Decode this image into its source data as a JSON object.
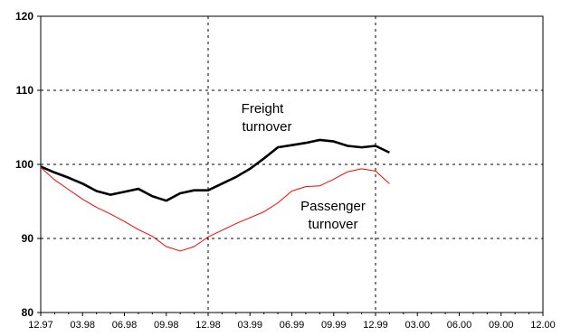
{
  "chart_data": {
    "type": "line",
    "title": "",
    "xlabel": "",
    "ylabel": "",
    "ylim": [
      80,
      120
    ],
    "yticks": [
      "80",
      "90",
      "100",
      "110",
      "120"
    ],
    "xticks": [
      "12.97",
      "03.98",
      "06.98",
      "09.98",
      "12.98",
      "03.99",
      "06.99",
      "09.99",
      "12.99",
      "03.00",
      "06.00",
      "09.00",
      "12.00"
    ],
    "x_months": [
      "12.97",
      "01.98",
      "02.98",
      "03.98",
      "04.98",
      "05.98",
      "06.98",
      "07.98",
      "08.98",
      "09.98",
      "10.98",
      "11.98",
      "12.98",
      "01.99",
      "02.99",
      "03.99",
      "04.99",
      "05.99",
      "06.99",
      "07.99",
      "08.99",
      "09.99",
      "10.99",
      "11.99",
      "12.99",
      "01.00"
    ],
    "grid": "dashed, major only",
    "series": [
      {
        "name": "Freight turnover",
        "color": "#000000",
        "values": [
          99.7,
          98.9,
          98.2,
          97.4,
          96.4,
          95.9,
          96.3,
          96.7,
          95.7,
          95.1,
          96.1,
          96.5,
          96.5,
          97.4,
          98.3,
          99.4,
          100.8,
          102.3,
          102.6,
          102.9,
          103.3,
          103.1,
          102.5,
          102.3,
          102.5,
          101.6
        ]
      },
      {
        "name": "Passenger turnover",
        "color": "#ff0000",
        "values": [
          99.6,
          97.9,
          96.6,
          95.3,
          94.2,
          93.3,
          92.3,
          91.2,
          90.3,
          88.9,
          88.3,
          88.9,
          90.2,
          91.1,
          92.0,
          92.8,
          93.6,
          94.8,
          96.4,
          97.0,
          97.1,
          98.0,
          99.0,
          99.4,
          99.1,
          97.4
        ]
      }
    ],
    "annotations": {
      "freight_line1": "Freight",
      "freight_line2": "turnover",
      "passenger_line1": "Passenger",
      "passenger_line2": "turnover"
    }
  }
}
